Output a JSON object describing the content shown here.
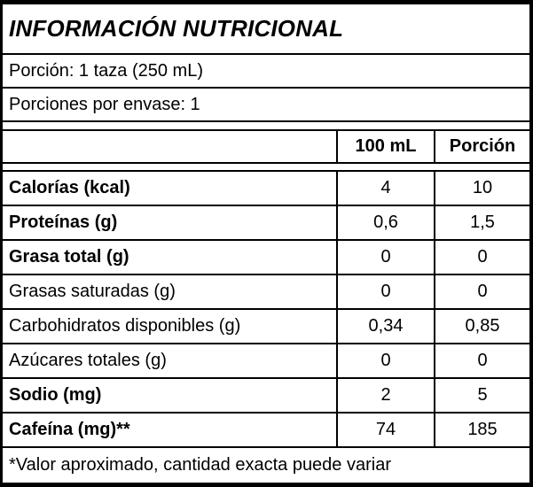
{
  "label": {
    "title": "INFORMACIÓN NUTRICIONAL",
    "serving_size": "Porción: 1 taza (250 mL)",
    "servings_per_container": "Porciones por envase: 1",
    "columns": {
      "per_100": "100 mL",
      "per_portion": "Porción"
    },
    "rows": [
      {
        "label": "Calorías (kcal)",
        "per_100": "4",
        "per_portion": "10",
        "bold": true
      },
      {
        "label": "Proteínas (g)",
        "per_100": "0,6",
        "per_portion": "1,5",
        "bold": true
      },
      {
        "label": "Grasa total (g)",
        "per_100": "0",
        "per_portion": "0",
        "bold": true
      },
      {
        "label": "Grasas saturadas (g)",
        "per_100": "0",
        "per_portion": "0",
        "bold": false
      },
      {
        "label": "Carbohidratos disponibles (g)",
        "per_100": "0,34",
        "per_portion": "0,85",
        "bold": false
      },
      {
        "label": "Azúcares totales (g)",
        "per_100": "0",
        "per_portion": "0",
        "bold": false
      },
      {
        "label": "Sodio (mg)",
        "per_100": "2",
        "per_portion": "5",
        "bold": true
      },
      {
        "label": "Cafeína (mg)**",
        "per_100": "74",
        "per_portion": "185",
        "bold": true
      }
    ],
    "footnote": "*Valor aproximado, cantidad exacta puede variar"
  }
}
